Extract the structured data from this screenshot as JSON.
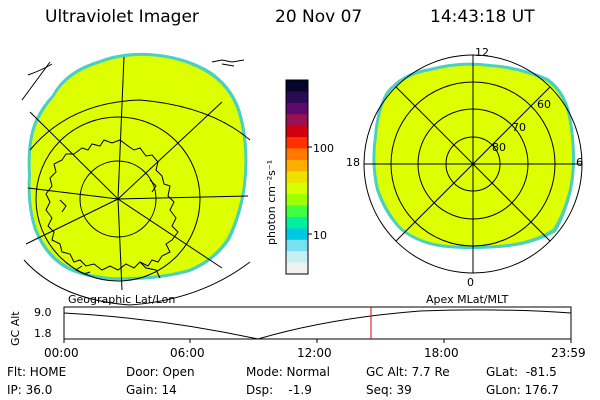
{
  "header": {
    "instrument": "Ultraviolet Imager",
    "date": "20 Nov 07",
    "time": "14:43:18 UT"
  },
  "colorbar": {
    "label": "photon cm⁻²s⁻¹",
    "ticks": [
      "100",
      "10"
    ],
    "colors": [
      "#05062a",
      "#2a0a52",
      "#5a0a6b",
      "#9a1050",
      "#d00010",
      "#ff3000",
      "#ff7800",
      "#ffae00",
      "#f0e000",
      "#d8ff00",
      "#a0ff00",
      "#40ff40",
      "#00f0a0",
      "#00c8e0",
      "#78e0f0",
      "#c8f0f4",
      "#f0f0f0"
    ]
  },
  "left_map": {
    "label": "Geographic Lat/Lon",
    "fill_color": "#ddff00",
    "edge_color": "#4ad0c0"
  },
  "right_map": {
    "label": "Apex MLat/MLT",
    "fill_color": "#ddff00",
    "edge_color": "#4ad0c0",
    "lat_labels": [
      "60",
      "70",
      "80"
    ],
    "mlt_labels": [
      "12",
      "18",
      "6",
      "0"
    ]
  },
  "altitude_plot": {
    "ylabel": "GC Alt",
    "yticks": [
      "9.0",
      "1.8"
    ],
    "xticks": [
      "00:00",
      "06:00",
      "12:00",
      "18:00",
      "23:59"
    ],
    "marker_color": "#dd0000"
  },
  "footer": {
    "flt": "Flt: HOME",
    "ip": "IP: 36.0",
    "door": "Door: Open",
    "gain": "Gain: 14",
    "mode": "Mode: Normal",
    "dsp": "Dsp:    -1.9",
    "gc_alt": "GC Alt: 7.7 Re",
    "seq": "Seq: 39",
    "glat": "GLat:  -81.5",
    "glon": "GLon: 176.7"
  }
}
